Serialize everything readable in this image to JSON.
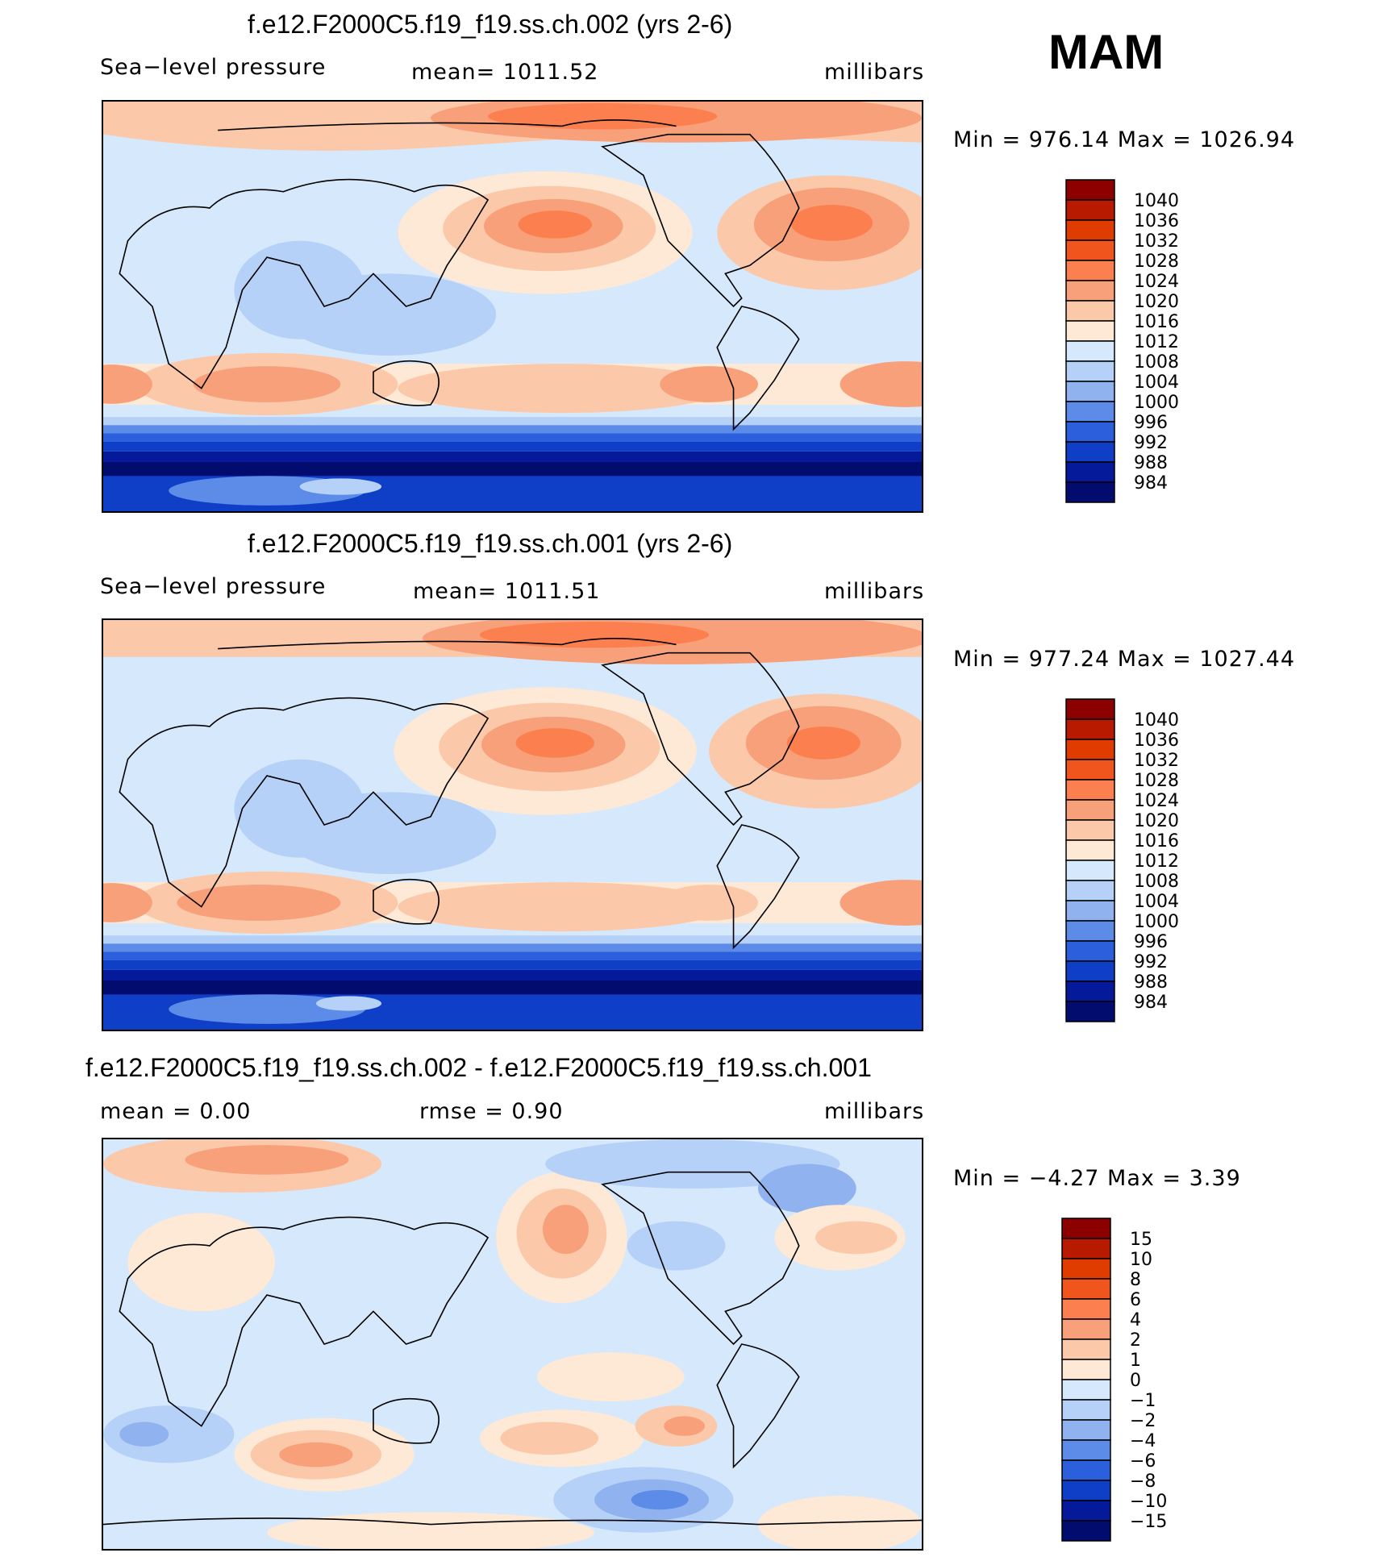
{
  "header": {
    "season": "MAM"
  },
  "panels": [
    {
      "title": "f.e12.F2000C5.f19_f19.ss.ch.002 (yrs 2-6)",
      "variable": "Sea−level pressure",
      "stat1": "mean=  1011.52",
      "units": "millibars",
      "range": "Min  =  976.14  Max  =  1026.94",
      "levels": [
        "1040",
        "1036",
        "1032",
        "1028",
        "1024",
        "1020",
        "1016",
        "1012",
        "1008",
        "1004",
        "1000",
        "996",
        "992",
        "988",
        "984"
      ],
      "colors": [
        "#8c0000",
        "#b81a00",
        "#e03c00",
        "#f0551e",
        "#fc7f50",
        "#f7a079",
        "#fbc9aa",
        "#fde9d6",
        "#d6e8fb",
        "#b5d1f7",
        "#90b3f0",
        "#5c8ce8",
        "#2b5fdb",
        "#0f3fc7",
        "#041a9a",
        "#020b6e"
      ]
    },
    {
      "title": "f.e12.F2000C5.f19_f19.ss.ch.001 (yrs 2-6)",
      "variable": "Sea−level pressure",
      "stat1": "mean=  1011.51",
      "units": "millibars",
      "range": "Min  =  977.24  Max  =  1027.44",
      "levels": [
        "1040",
        "1036",
        "1032",
        "1028",
        "1024",
        "1020",
        "1016",
        "1012",
        "1008",
        "1004",
        "1000",
        "996",
        "992",
        "988",
        "984"
      ],
      "colors": [
        "#8c0000",
        "#b81a00",
        "#e03c00",
        "#f0551e",
        "#fc7f50",
        "#f7a079",
        "#fbc9aa",
        "#fde9d6",
        "#d6e8fb",
        "#b5d1f7",
        "#90b3f0",
        "#5c8ce8",
        "#2b5fdb",
        "#0f3fc7",
        "#041a9a",
        "#020b6e"
      ]
    },
    {
      "title": "f.e12.F2000C5.f19_f19.ss.ch.002 - f.e12.F2000C5.f19_f19.ss.ch.001",
      "stat1": "mean  =      0.00",
      "stat2": "rmse  =      0.90",
      "units": "millibars",
      "range": "Min  =    −4.27  Max  =      3.39",
      "levels": [
        "15",
        "10",
        "8",
        "6",
        "4",
        "2",
        "1",
        "0",
        "−1",
        "−2",
        "−4",
        "−6",
        "−8",
        "−10",
        "−15"
      ],
      "colors": [
        "#8c0000",
        "#b81a00",
        "#e03c00",
        "#f0551e",
        "#fc7f50",
        "#f7a079",
        "#fbc9aa",
        "#fde9d6",
        "#d6e8fb",
        "#b5d1f7",
        "#90b3f0",
        "#5c8ce8",
        "#2b5fdb",
        "#0f3fc7",
        "#041a9a",
        "#020b6e"
      ]
    }
  ]
}
